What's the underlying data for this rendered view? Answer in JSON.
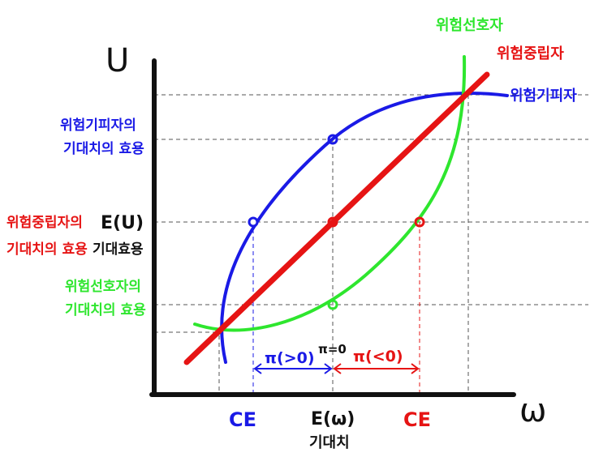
{
  "colors": {
    "averse": "#1a1ae6",
    "neutral": "#e61414",
    "seeking": "#2ee62e",
    "axis": "#111111",
    "guide": "#555555"
  },
  "axes": {
    "y_label": "U",
    "x_label": "ω"
  },
  "curve_labels": {
    "seeking": "위험선호자",
    "neutral": "위험중립자",
    "averse": "위험기피자"
  },
  "y_annotations": {
    "averse_line1": "위험기피자의",
    "averse_line2": "기대치의 효용",
    "eu_symbol": "E(U)",
    "neutral_line1": "위험중립자의",
    "neutral_line2": "기대치의 효용",
    "eu_word": "기대효용",
    "seeking_line1": "위험선호자의",
    "seeking_line2": "기대치의 효용"
  },
  "x_annotations": {
    "ce_left": "CE",
    "ew": "E(ω)",
    "ew_word": "기대치",
    "ce_right": "CE"
  },
  "premiums": {
    "positive": "π(>0)",
    "zero": "π=0",
    "negative": "π(<0)"
  }
}
